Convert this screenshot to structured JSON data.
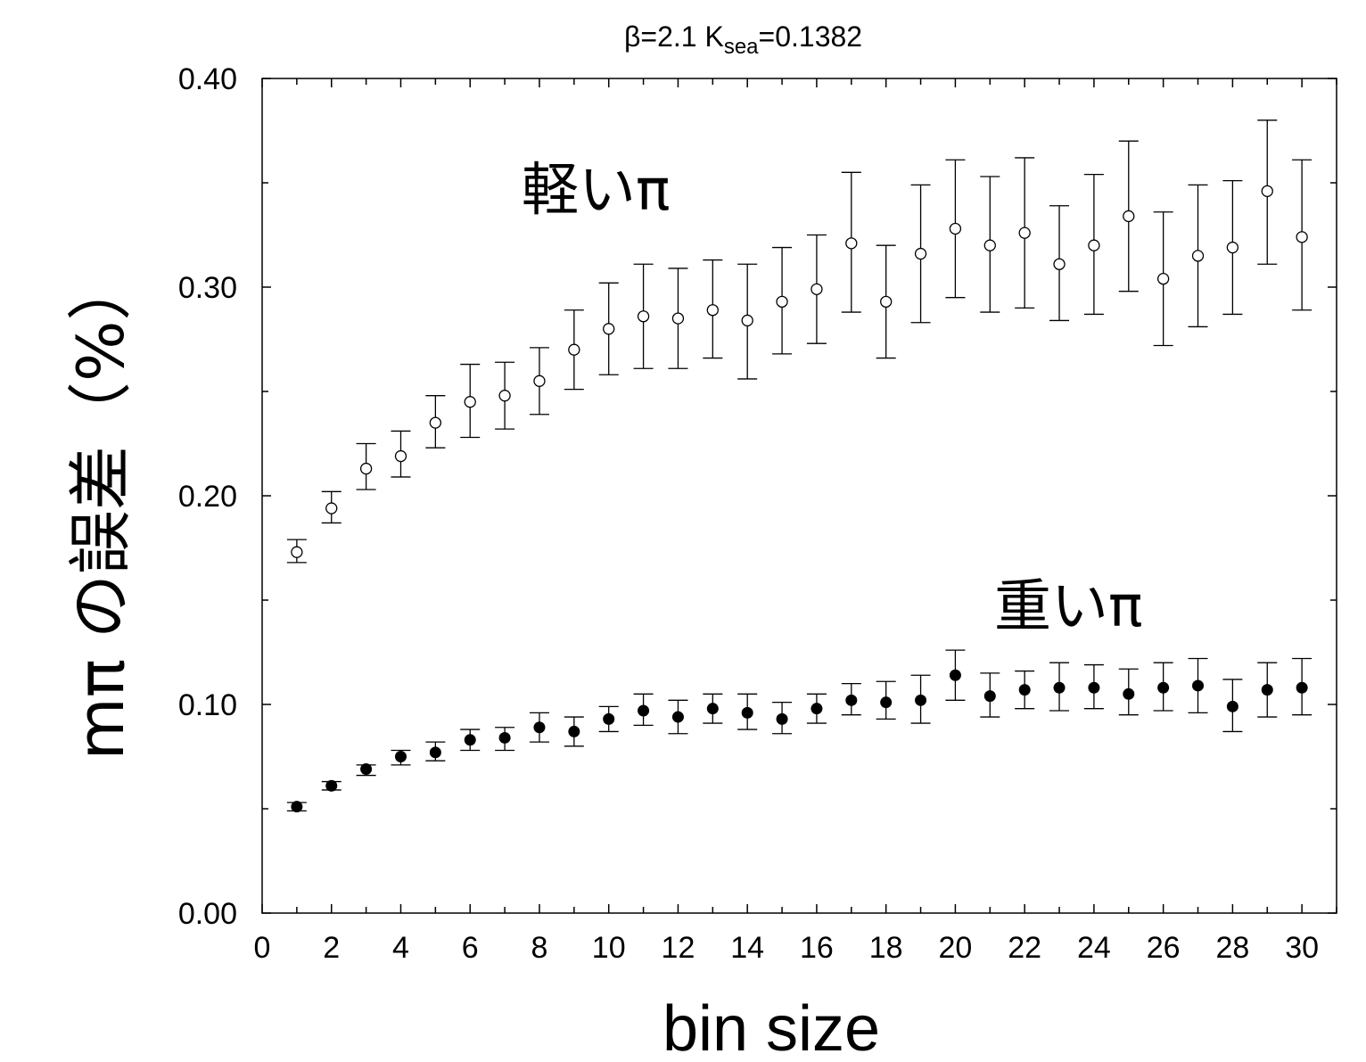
{
  "chart_data": {
    "type": "scatter",
    "title": "β=2.1   K",
    "title_sub": "sea",
    "title_rest": "=0.1382",
    "xlabel": "bin size",
    "ylabel": "mπ の誤差（%）",
    "xlim": [
      0,
      31
    ],
    "ylim": [
      0,
      0.4
    ],
    "xticks": [
      "0",
      "2",
      "4",
      "6",
      "8",
      "10",
      "12",
      "14",
      "16",
      "18",
      "20",
      "22",
      "24",
      "26",
      "28",
      "30"
    ],
    "yticks": [
      "0.00",
      "0.10",
      "0.20",
      "0.30",
      "0.40"
    ],
    "grid": false,
    "series": [
      {
        "name": "軽いπ",
        "marker": "open-circle",
        "x": [
          1,
          2,
          3,
          4,
          5,
          6,
          7,
          8,
          9,
          10,
          11,
          12,
          13,
          14,
          15,
          16,
          17,
          18,
          19,
          20,
          21,
          22,
          23,
          24,
          25,
          26,
          27,
          28,
          29,
          30
        ],
        "y": [
          0.173,
          0.194,
          0.213,
          0.219,
          0.235,
          0.245,
          0.248,
          0.255,
          0.27,
          0.28,
          0.286,
          0.285,
          0.289,
          0.284,
          0.293,
          0.299,
          0.321,
          0.293,
          0.316,
          0.328,
          0.32,
          0.326,
          0.311,
          0.32,
          0.334,
          0.304,
          0.315,
          0.319,
          0.346,
          0.324
        ],
        "err_low": [
          0.168,
          0.187,
          0.203,
          0.209,
          0.223,
          0.228,
          0.232,
          0.239,
          0.251,
          0.258,
          0.261,
          0.261,
          0.266,
          0.256,
          0.268,
          0.273,
          0.288,
          0.266,
          0.283,
          0.295,
          0.288,
          0.29,
          0.284,
          0.287,
          0.298,
          0.272,
          0.281,
          0.287,
          0.311,
          0.289
        ],
        "err_high": [
          0.179,
          0.202,
          0.225,
          0.231,
          0.248,
          0.263,
          0.264,
          0.271,
          0.289,
          0.302,
          0.311,
          0.309,
          0.313,
          0.311,
          0.319,
          0.325,
          0.355,
          0.32,
          0.349,
          0.361,
          0.353,
          0.362,
          0.339,
          0.354,
          0.37,
          0.336,
          0.349,
          0.351,
          0.38,
          0.361
        ]
      },
      {
        "name": "重いπ",
        "marker": "filled-circle",
        "x": [
          1,
          2,
          3,
          4,
          5,
          6,
          7,
          8,
          9,
          10,
          11,
          12,
          13,
          14,
          15,
          16,
          17,
          18,
          19,
          20,
          21,
          22,
          23,
          24,
          25,
          26,
          27,
          28,
          29,
          30
        ],
        "y": [
          0.051,
          0.061,
          0.069,
          0.075,
          0.077,
          0.083,
          0.084,
          0.089,
          0.087,
          0.093,
          0.097,
          0.094,
          0.098,
          0.096,
          0.093,
          0.098,
          0.102,
          0.101,
          0.102,
          0.114,
          0.104,
          0.107,
          0.108,
          0.108,
          0.105,
          0.108,
          0.109,
          0.099,
          0.107,
          0.108
        ],
        "err_low": [
          0.049,
          0.059,
          0.066,
          0.071,
          0.073,
          0.078,
          0.078,
          0.082,
          0.08,
          0.087,
          0.09,
          0.086,
          0.091,
          0.088,
          0.086,
          0.091,
          0.095,
          0.093,
          0.091,
          0.102,
          0.094,
          0.098,
          0.097,
          0.098,
          0.095,
          0.097,
          0.096,
          0.087,
          0.094,
          0.095
        ],
        "err_high": [
          0.053,
          0.063,
          0.071,
          0.078,
          0.082,
          0.088,
          0.089,
          0.096,
          0.094,
          0.099,
          0.105,
          0.102,
          0.105,
          0.105,
          0.101,
          0.105,
          0.11,
          0.111,
          0.114,
          0.126,
          0.115,
          0.116,
          0.12,
          0.119,
          0.117,
          0.12,
          0.122,
          0.112,
          0.12,
          0.122
        ]
      }
    ],
    "annotations": [
      {
        "text": "軽いπ"
      },
      {
        "text": "重いπ"
      }
    ]
  }
}
